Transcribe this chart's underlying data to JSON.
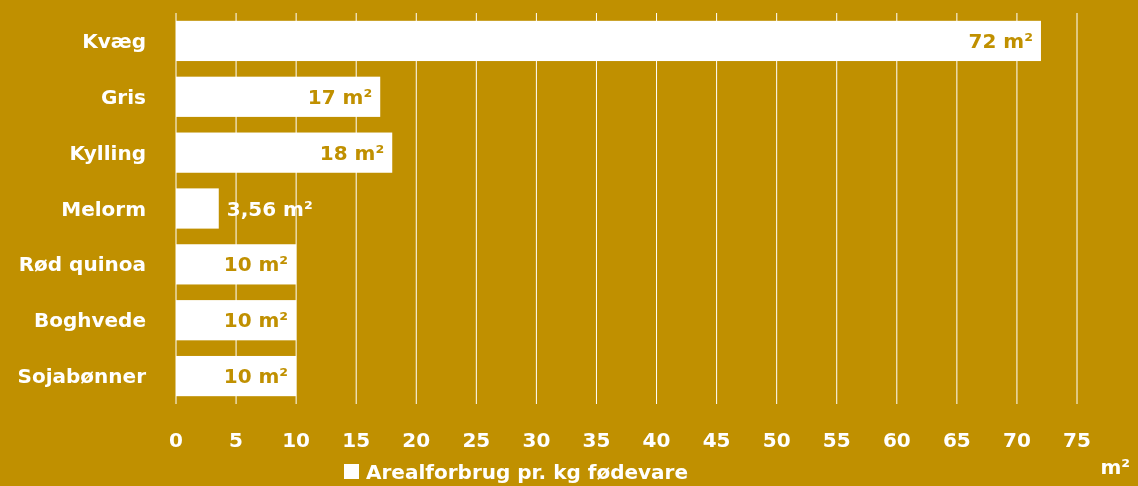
{
  "chart_data": {
    "type": "bar",
    "orientation": "horizontal",
    "categories": [
      "Kvæg",
      "Gris",
      "Kylling",
      "Melorm",
      "Rød quinoa",
      "Boghvede",
      "Sojabønner"
    ],
    "series": [
      {
        "name": "Arealforbrug pr. kg fødevare",
        "color": "#ffffff",
        "values": [
          72,
          17,
          18,
          3.56,
          10,
          10,
          10
        ],
        "value_labels": [
          "72 m²",
          "17 m²",
          "18 m²",
          "3,56 m²",
          "10 m²",
          "10 m²",
          "10 m²"
        ]
      }
    ],
    "xlim": [
      0,
      75
    ],
    "xticks": [
      0,
      5,
      10,
      15,
      20,
      25,
      30,
      35,
      40,
      45,
      50,
      55,
      60,
      65,
      70,
      75
    ],
    "xlabel": "m²",
    "grid": "x",
    "legend": "bottom"
  }
}
